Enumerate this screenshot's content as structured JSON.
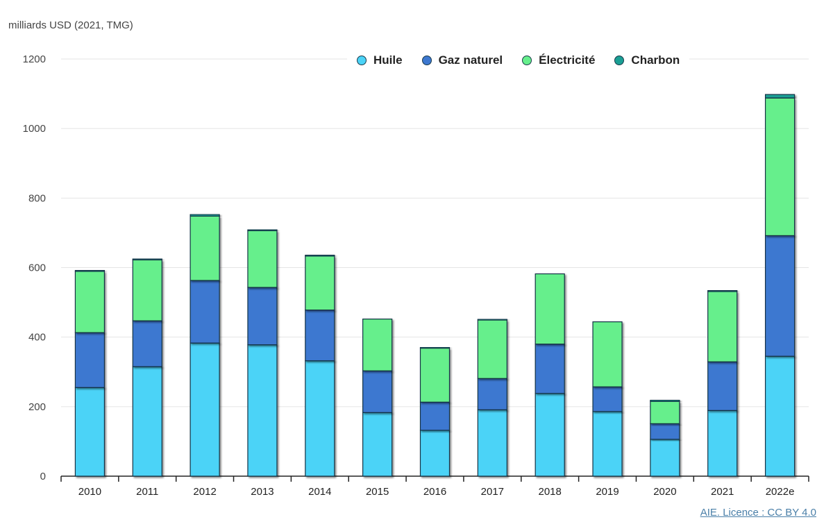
{
  "chart_data": {
    "type": "bar",
    "stacked": true,
    "ylabel": "milliards USD (2021, TMG)",
    "ylim": [
      0,
      1200
    ],
    "yticks": [
      0,
      200,
      400,
      600,
      800,
      1000,
      1200
    ],
    "grid": true,
    "legend_position": "top",
    "categories": [
      "2010",
      "2011",
      "2012",
      "2013",
      "2014",
      "2015",
      "2016",
      "2017",
      "2018",
      "2019",
      "2020",
      "2021",
      "2022e"
    ],
    "series": [
      {
        "name": "Huile",
        "color": "#4bd3f7",
        "values": [
          255,
          315,
          383,
          378,
          332,
          183,
          132,
          191,
          238,
          186,
          106,
          189,
          345
        ]
      },
      {
        "name": "Gaz naturel",
        "color": "#3d78d0",
        "values": [
          158,
          132,
          180,
          165,
          146,
          120,
          81,
          90,
          142,
          71,
          45,
          140,
          347
        ]
      },
      {
        "name": "Électricité",
        "color": "#66ef8c",
        "values": [
          176,
          175,
          185,
          163,
          155,
          149,
          155,
          168,
          202,
          187,
          64,
          202,
          396
        ]
      },
      {
        "name": "Charbon",
        "color": "#1a9f94",
        "values": [
          3,
          3,
          5,
          3,
          3,
          0,
          3,
          3,
          0,
          0,
          4,
          3,
          10
        ]
      }
    ]
  },
  "source_link": "AIE. Licence : CC BY 4.0"
}
